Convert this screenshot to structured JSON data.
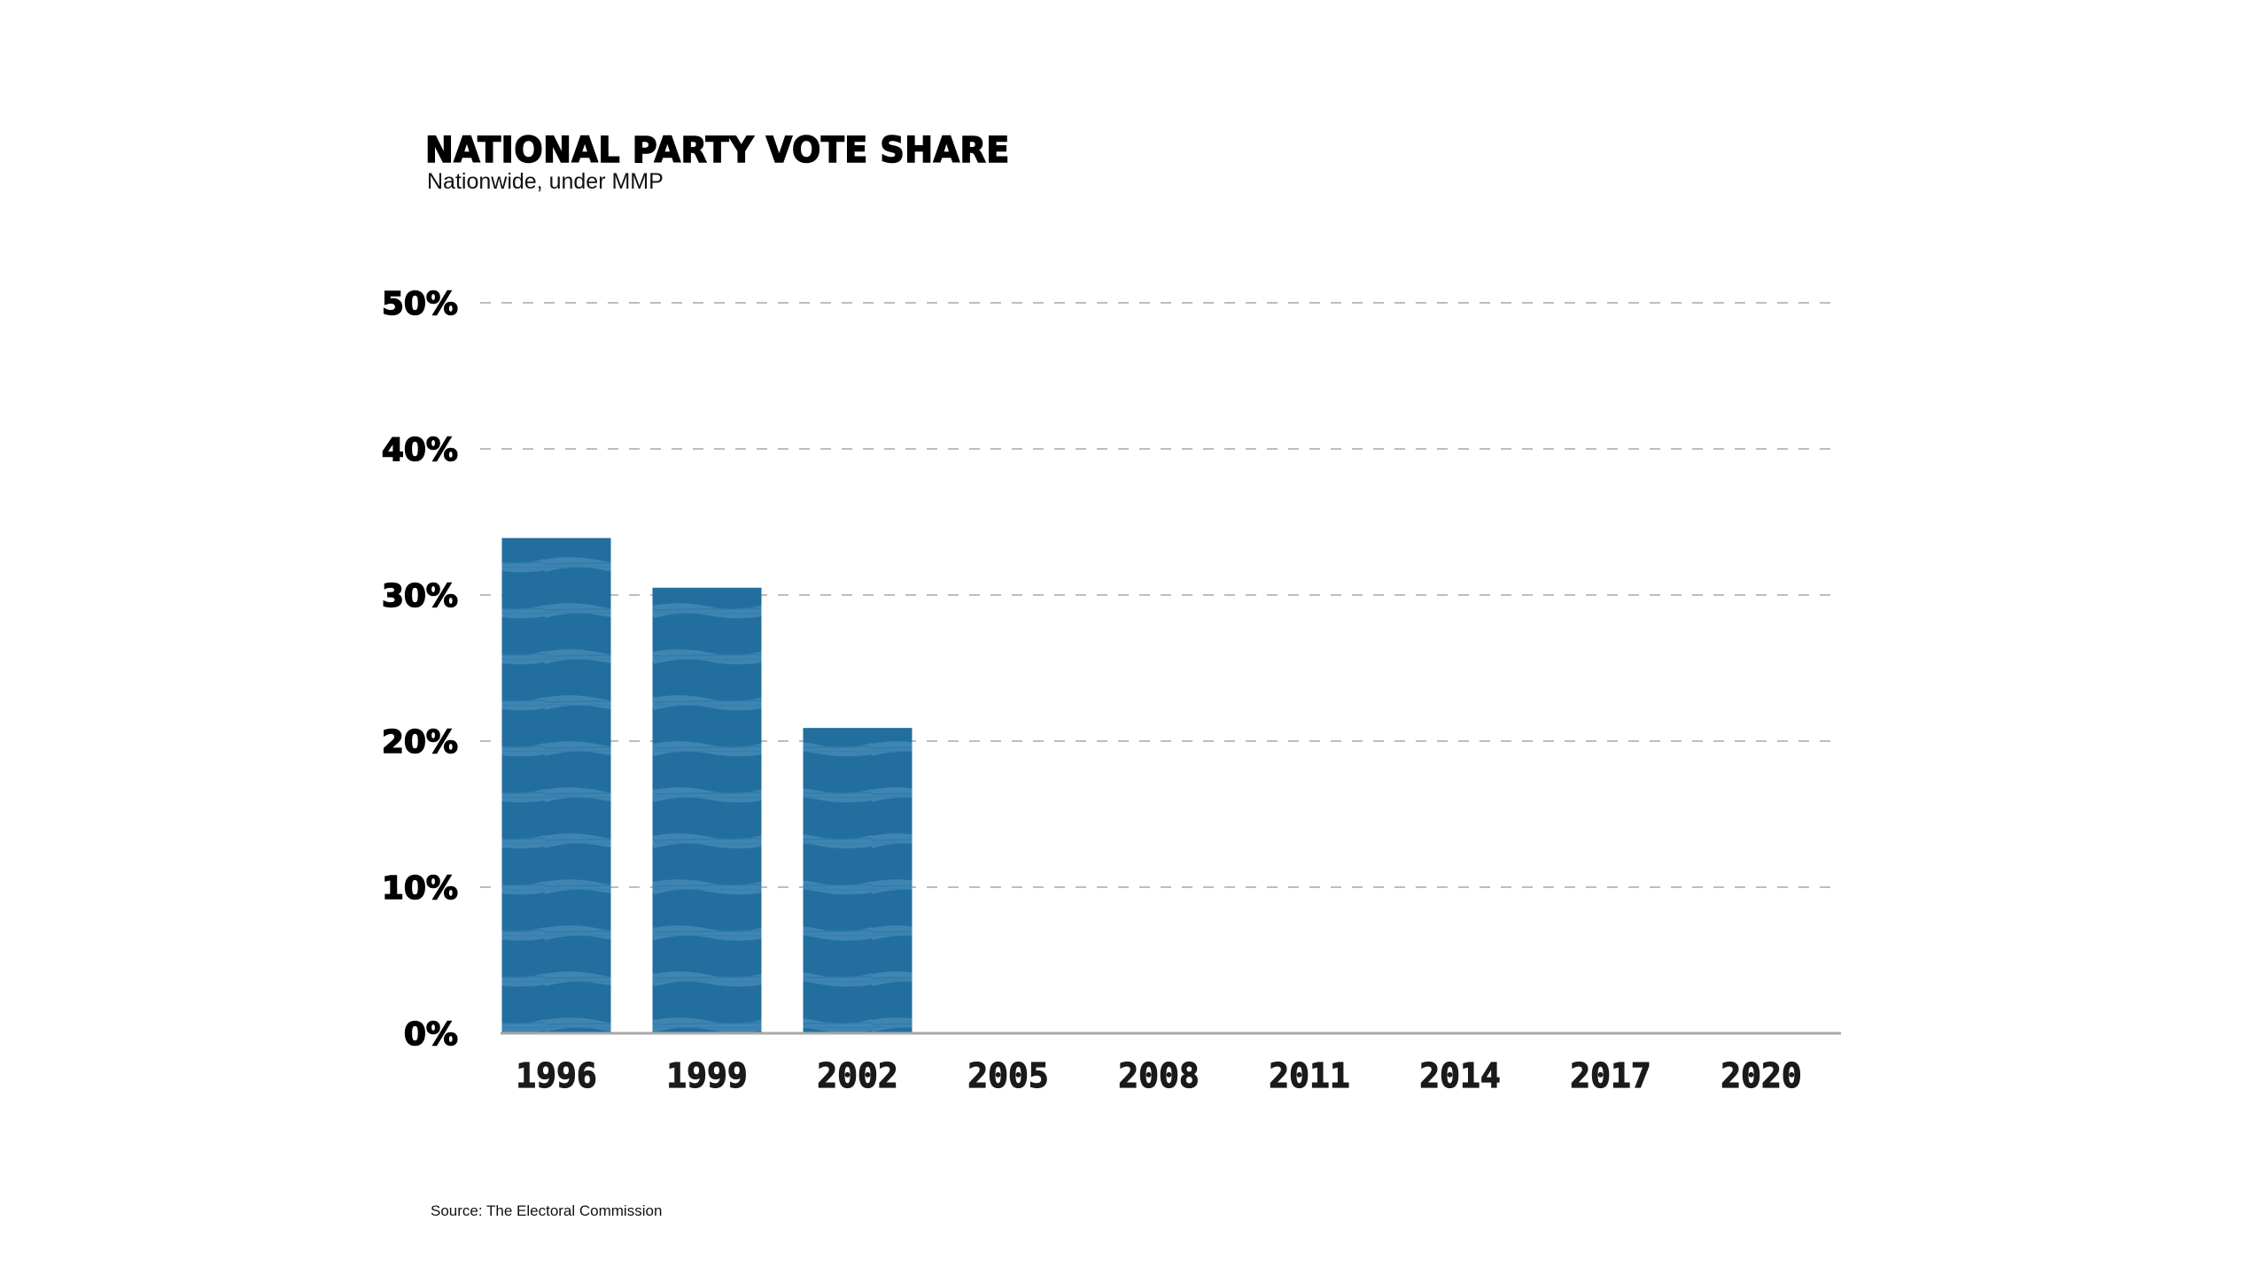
{
  "header": {
    "title": "NATIONAL PARTY VOTE SHARE",
    "subtitle": "Nationwide, under MMP"
  },
  "footer": {
    "source": "Source: The Electoral Commission"
  },
  "colors": {
    "bar": "#226f9f",
    "bar_stripe": "#4488b5",
    "grid": "#bdbdbd",
    "baseline": "#a8a8a8",
    "text": "#000000"
  },
  "chart_data": {
    "type": "bar",
    "title": "NATIONAL PARTY VOTE SHARE",
    "subtitle": "Nationwide, under MMP",
    "xlabel": "",
    "ylabel": "",
    "categories": [
      "1996",
      "1999",
      "2002",
      "2005",
      "2008",
      "2011",
      "2014",
      "2017",
      "2020"
    ],
    "values": [
      33.9,
      30.5,
      20.9,
      0,
      0,
      0,
      0,
      0,
      0
    ],
    "ylim": [
      0,
      50
    ],
    "yticks": [
      0,
      10,
      20,
      30,
      40,
      50
    ],
    "ytick_labels": [
      "0%",
      "10%",
      "20%",
      "30%",
      "40%",
      "50%"
    ],
    "grid": true,
    "grid_style": "dashed",
    "legend": "none",
    "source": "Source: The Electoral Commission"
  }
}
